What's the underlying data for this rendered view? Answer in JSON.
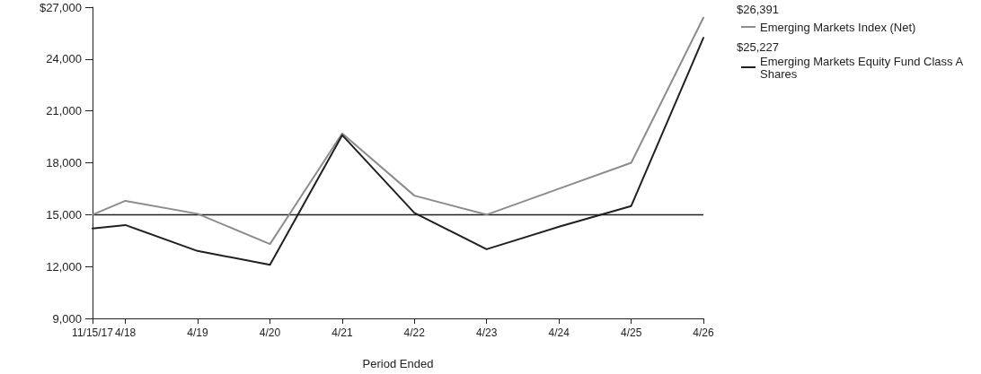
{
  "chart_data": {
    "type": "line",
    "xlabel": "Period Ended",
    "x": [
      "2017-11-15",
      "2018-04-30",
      "2019-04-30",
      "2020-04-30",
      "2021-04-30",
      "2022-04-30",
      "2023-04-30",
      "2024-04-30",
      "2025-04-30",
      "2026-04-30"
    ],
    "series": [
      {
        "name": "Emerging Markets Index (Net)",
        "color": "#8c8c8c",
        "values": [
          15000,
          15800,
          15050,
          13300,
          19700,
          16100,
          15000,
          16500,
          18000,
          26391
        ]
      },
      {
        "name": "Emerging Markets Equity Fund Class A Shares",
        "color": "#231f20",
        "values": [
          14200,
          14400,
          12900,
          12100,
          19600,
          15100,
          13000,
          14300,
          15500,
          25227
        ]
      }
    ],
    "annotations": [
      "$26,391",
      "$25,227"
    ],
    "xlim": [
      "2017-11-15",
      "2026-04-30"
    ],
    "xticks": [
      {
        "value": "2017-11-15",
        "label": "11/15/17"
      },
      {
        "value": "2018-04-30",
        "label": "4/18"
      },
      {
        "value": "2019-04-30",
        "label": "4/19"
      },
      {
        "value": "2020-04-30",
        "label": "4/20"
      },
      {
        "value": "2021-04-30",
        "label": "4/21"
      },
      {
        "value": "2022-04-30",
        "label": "4/22"
      },
      {
        "value": "2023-04-30",
        "label": "4/23"
      },
      {
        "value": "2024-04-30",
        "label": "4/24"
      },
      {
        "value": "2025-04-30",
        "label": "4/25"
      },
      {
        "value": "2026-04-30",
        "label": "4/26"
      }
    ],
    "ylim": [
      9000,
      27000
    ],
    "yticks": [
      {
        "value": 9000,
        "label": "9,000"
      },
      {
        "value": 12000,
        "label": "12,000"
      },
      {
        "value": 15000,
        "label": "15,000"
      },
      {
        "value": 18000,
        "label": "18,000"
      },
      {
        "value": 21000,
        "label": "21,000"
      },
      {
        "value": 24000,
        "label": "24,000"
      },
      {
        "value": 27000,
        "label": "$27,000"
      }
    ],
    "ref_lines": [
      {
        "axis": "y",
        "value": 15000,
        "color": "#231f20"
      }
    ],
    "grid": false,
    "legend": "top right",
    "marker": "none",
    "line_style": "solid"
  }
}
